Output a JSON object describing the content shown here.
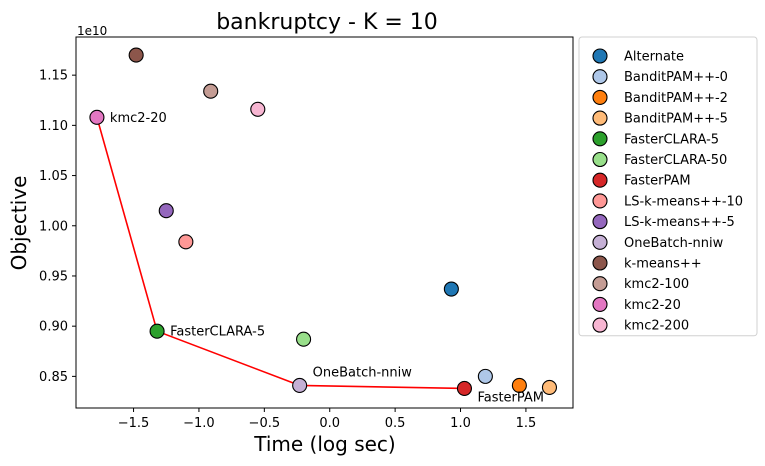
{
  "chart_data": {
    "type": "scatter",
    "title": "bankruptcy - K = 10",
    "xlabel": "Time (log sec)",
    "ylabel": "Objective",
    "y_scale_note": "1e10",
    "xlim": [
      -1.94,
      1.86
    ],
    "ylim": [
      0.8185,
      1.188
    ],
    "xticks": [
      -1.5,
      -1.0,
      -0.5,
      0.0,
      0.5,
      1.0,
      1.5
    ],
    "xtick_labels": [
      "−1.5",
      "−1.0",
      "−0.5",
      "0.0",
      "0.5",
      "1.0",
      "1.5"
    ],
    "yticks": [
      0.85,
      0.9,
      0.95,
      1.0,
      1.05,
      1.1,
      1.15
    ],
    "ytick_labels": [
      "0.85",
      "0.90",
      "0.95",
      "1.00",
      "1.05",
      "1.10",
      "1.15"
    ],
    "legend_position": "outside-right",
    "series": [
      {
        "name": "Alternate",
        "color": "#1f77b4",
        "x": 0.93,
        "y": 0.937
      },
      {
        "name": "BanditPAM++-0",
        "color": "#aec7e8",
        "x": 1.19,
        "y": 0.85
      },
      {
        "name": "BanditPAM++-2",
        "color": "#ff7f0e",
        "x": 1.45,
        "y": 0.841
      },
      {
        "name": "BanditPAM++-5",
        "color": "#ffbb78",
        "x": 1.68,
        "y": 0.839
      },
      {
        "name": "FasterCLARA-5",
        "color": "#2ca02c",
        "x": -1.32,
        "y": 0.895
      },
      {
        "name": "FasterCLARA-50",
        "color": "#98df8a",
        "x": -0.2,
        "y": 0.887
      },
      {
        "name": "FasterPAM",
        "color": "#d62728",
        "x": 1.03,
        "y": 0.838
      },
      {
        "name": "LS-k-means++-10",
        "color": "#ff9896",
        "x": -1.1,
        "y": 0.984
      },
      {
        "name": "LS-k-means++-5",
        "color": "#9467bd",
        "x": -1.25,
        "y": 1.015
      },
      {
        "name": "OneBatch-nniw",
        "color": "#c5b0d5",
        "x": -0.23,
        "y": 0.841
      },
      {
        "name": "k-means++",
        "color": "#8c564b",
        "x": -1.48,
        "y": 1.17
      },
      {
        "name": "kmc2-100",
        "color": "#c49c94",
        "x": -0.91,
        "y": 1.134
      },
      {
        "name": "kmc2-20",
        "color": "#e377c2",
        "x": -1.78,
        "y": 1.108
      },
      {
        "name": "kmc2-200",
        "color": "#f7b6d2",
        "x": -0.55,
        "y": 1.116
      }
    ],
    "pareto_front": {
      "color": "#ff0000",
      "points": [
        {
          "x": -1.78,
          "y": 1.108
        },
        {
          "x": -1.32,
          "y": 0.895
        },
        {
          "x": -0.23,
          "y": 0.841
        },
        {
          "x": 1.03,
          "y": 0.838
        }
      ]
    },
    "annotations": [
      {
        "text": "kmc2-20",
        "x": -1.78,
        "y": 1.108,
        "placement": "right"
      },
      {
        "text": "FasterCLARA-5",
        "x": -1.32,
        "y": 0.895,
        "placement": "right"
      },
      {
        "text": "OneBatch-nniw",
        "x": -0.23,
        "y": 0.841,
        "placement": "above-right"
      },
      {
        "text": "FasterPAM",
        "x": 1.03,
        "y": 0.838,
        "placement": "below-right"
      }
    ]
  }
}
